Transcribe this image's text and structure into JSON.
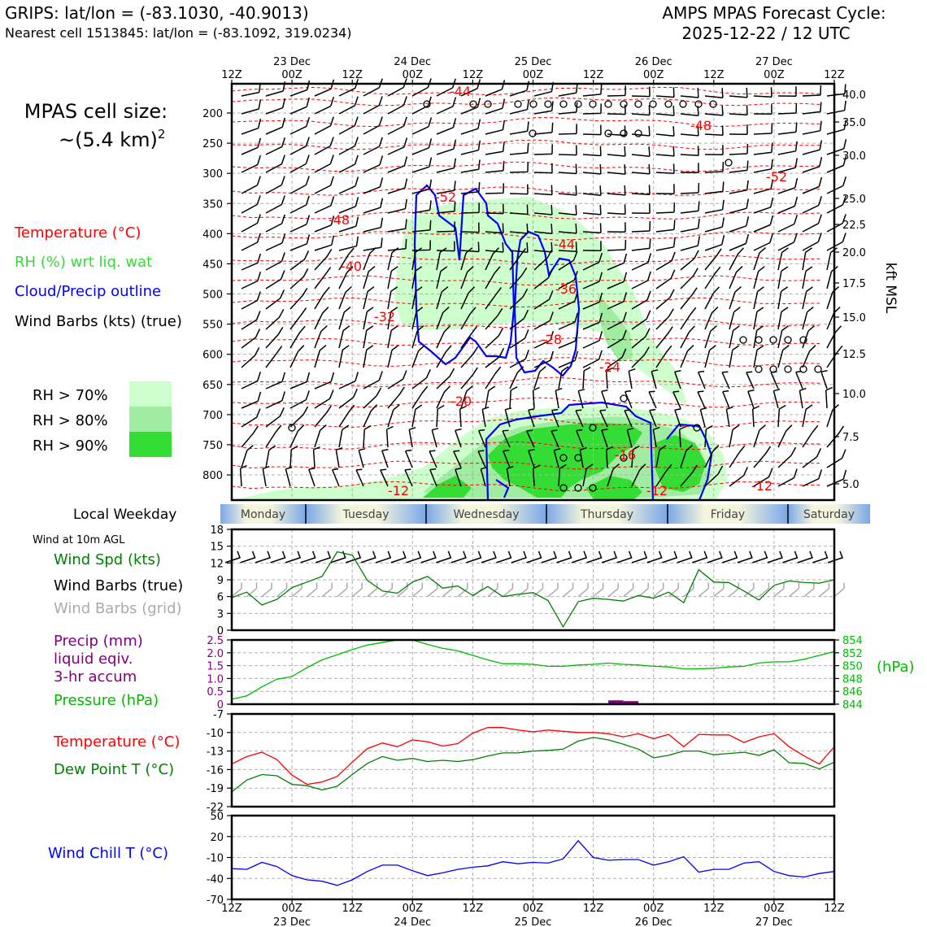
{
  "header": {
    "left_title": "GRIPS: lat/lon = (-83.1030, -40.9013)",
    "left_subtitle": "Nearest cell 1513845: lat/lon = (-83.1092, 319.0234)",
    "right_title_line1": "AMPS MPAS Forecast Cycle:",
    "right_title_line2": "2025-12-22 / 12 UTC"
  },
  "legend": {
    "cell_size_line1": "MPAS cell size:",
    "cell_size_line2": "~(5.4 km)",
    "cell_size_exp": "2",
    "temperature": "Temperature (°C)",
    "rh": "RH (%) wrt liq. wat",
    "cloud": "Cloud/Precip outline",
    "barbs": "Wind Barbs (kts) (true)",
    "rh70": "RH > 70%",
    "rh80": "RH > 80%",
    "rh90": "RH > 90%",
    "colors": {
      "temperature": "#ff0000",
      "rh_label": "#33dd33",
      "cloud": "#0000ff",
      "rh70": "#ccffcc",
      "rh80": "#a0eca0",
      "rh90": "#33dd33"
    }
  },
  "time_axis": {
    "top_ticks": [
      "12Z",
      "00Z",
      "12Z",
      "00Z",
      "12Z",
      "00Z",
      "12Z",
      "00Z",
      "12Z",
      "00Z",
      "12Z"
    ],
    "dates": [
      "23 Dec",
      "24 Dec",
      "25 Dec",
      "26 Dec",
      "27 Dec"
    ],
    "bottom_ticks": [
      "12Z",
      "00Z",
      "12Z",
      "00Z",
      "12Z",
      "00Z",
      "12Z",
      "00Z",
      "12Z",
      "00Z",
      "12Z"
    ]
  },
  "weekday": {
    "label": "Local Weekday",
    "days": [
      "Monday",
      "Tuesday",
      "Wednesday",
      "Thursday",
      "Friday",
      "Saturday"
    ]
  },
  "wind_panel": {
    "header": "Wind at 10m AGL",
    "spd_label": "Wind Spd (kts)",
    "barbs_true": "Wind Barbs (true)",
    "barbs_grid": "Wind Barbs (grid)"
  },
  "precip_panel": {
    "precip_line1": "Precip (mm)",
    "precip_line2": "liquid eqiv.",
    "precip_line3": "3-hr accum",
    "pressure_label": "Pressure (hPa)",
    "hpa_unit": "(hPa)"
  },
  "temp_panel": {
    "temp_label": "Temperature (°C)",
    "dew_label": "Dew Point T (°C)"
  },
  "windchill_panel": {
    "label": "Wind Chill T (°C)"
  },
  "chart_data": [
    {
      "type": "heatmap",
      "name": "cross-section",
      "x_range_hours": [
        0,
        120
      ],
      "left_axis_label": "",
      "left_ticks_hpa": [
        200,
        250,
        300,
        350,
        400,
        450,
        500,
        550,
        600,
        650,
        700,
        750,
        800
      ],
      "right_axis_label": "kft MSL",
      "right_ticks_kft": [
        "40.0",
        "35.0",
        "30.0",
        "25.0",
        "22.5",
        "20.0",
        "17.5",
        "15.0",
        "12.5",
        "10.0",
        "7.5",
        "5.0"
      ],
      "temperature_labels": [
        "-44",
        "-48",
        "-52",
        "-48",
        "-52",
        "-40",
        "-44",
        "-36",
        "-32",
        "-28",
        "-24",
        "-20",
        "-16",
        "-12",
        "-12",
        "-12"
      ]
    },
    {
      "type": "line",
      "name": "wind speed 10m",
      "ylim": [
        0,
        18
      ],
      "yticks": [
        "18",
        "15",
        "12",
        "9",
        "6",
        "3",
        "0"
      ],
      "x_hours": [
        0,
        3,
        6,
        9,
        12,
        15,
        18,
        21,
        24,
        27,
        30,
        33,
        36,
        39,
        42,
        45,
        48,
        51,
        54,
        57,
        60,
        63,
        66,
        69,
        72,
        75,
        78,
        81,
        84,
        87,
        90,
        93,
        96,
        99,
        102,
        105,
        108,
        111,
        114,
        117,
        120
      ],
      "values": [
        5.8,
        6.8,
        4.5,
        5.5,
        7.6,
        8.6,
        9.6,
        14.0,
        13.4,
        8.9,
        7.0,
        6.6,
        8.6,
        9.6,
        7.5,
        7.9,
        6.2,
        7.8,
        6.0,
        6.4,
        6.7,
        5.3,
        0.6,
        5.1,
        5.7,
        5.5,
        5.2,
        6.2,
        5.7,
        6.8,
        4.9,
        10.8,
        8.6,
        8.5,
        7.0,
        5.4,
        8.0,
        8.8,
        8.5,
        8.4,
        9.0
      ]
    },
    {
      "type": "bar",
      "name": "precip 3-hr accum",
      "ylim": [
        0,
        2.5
      ],
      "yticks": [
        "2.5",
        "2.0",
        "1.5",
        "1.0",
        "0.5",
        "0"
      ],
      "x_hours": [
        69,
        72,
        75,
        78,
        81
      ],
      "values": [
        0.01,
        0.02,
        0.15,
        0.12,
        0.0
      ]
    },
    {
      "type": "line",
      "name": "pressure",
      "ylim": [
        844,
        854
      ],
      "yticks": [
        "854",
        "852",
        "850",
        "848",
        "846",
        "844"
      ],
      "x_hours": [
        0,
        3,
        6,
        9,
        12,
        15,
        18,
        21,
        24,
        27,
        30,
        33,
        36,
        39,
        42,
        45,
        48,
        51,
        54,
        57,
        60,
        63,
        66,
        69,
        72,
        75,
        78,
        81,
        84,
        87,
        90,
        93,
        96,
        99,
        102,
        105,
        108,
        111,
        114,
        117,
        120
      ],
      "values": [
        844.8,
        845.3,
        846.7,
        847.9,
        848.3,
        849.7,
        850.9,
        851.7,
        852.5,
        853.2,
        853.6,
        854.0,
        854.0,
        853.3,
        852.7,
        852.3,
        851.6,
        850.9,
        850.3,
        850.3,
        850.2,
        849.9,
        849.9,
        850.1,
        850.2,
        850.4,
        850.2,
        850.1,
        849.9,
        849.8,
        849.5,
        849.5,
        849.6,
        849.8,
        849.9,
        850.4,
        850.6,
        850.6,
        851.0,
        851.6,
        852.2
      ]
    },
    {
      "type": "line",
      "name": "temperature and dew point",
      "ylim": [
        -22,
        -7
      ],
      "yticks": [
        "-7",
        "-10",
        "-13",
        "-16",
        "-19",
        "-22"
      ],
      "x_hours": [
        0,
        3,
        6,
        9,
        12,
        15,
        18,
        21,
        24,
        27,
        30,
        33,
        36,
        39,
        42,
        45,
        48,
        51,
        54,
        57,
        60,
        63,
        66,
        69,
        72,
        75,
        78,
        81,
        84,
        87,
        90,
        93,
        96,
        99,
        102,
        105,
        108,
        111,
        114,
        117,
        120
      ],
      "series": [
        {
          "values": [
            -15.1,
            -13.9,
            -13.2,
            -14.4,
            -16.9,
            -18.4,
            -18.0,
            -17.1,
            -14.8,
            -12.6,
            -11.7,
            -12.3,
            -11.2,
            -11.5,
            -12.2,
            -11.8,
            -10.1,
            -9.2,
            -9.2,
            -9.6,
            -9.9,
            -9.6,
            -9.8,
            -10.0,
            -10.0,
            -10.2,
            -10.7,
            -10.2,
            -11.0,
            -10.3,
            -12.3,
            -10.3,
            -10.4,
            -10.4,
            -11.6,
            -10.7,
            -10.2,
            -12.3,
            -13.8,
            -15.1,
            -12.3
          ]
        },
        {
          "values": [
            -19.6,
            -17.7,
            -16.8,
            -17.0,
            -18.4,
            -18.6,
            -19.3,
            -18.7,
            -16.8,
            -15.0,
            -13.9,
            -14.5,
            -14.2,
            -14.7,
            -14.5,
            -14.7,
            -14.4,
            -13.8,
            -13.3,
            -13.3,
            -13.0,
            -12.9,
            -12.7,
            -11.4,
            -10.8,
            -11.2,
            -11.9,
            -12.7,
            -14.1,
            -13.7,
            -13.0,
            -13.0,
            -13.6,
            -13.4,
            -13.2,
            -13.7,
            -12.8,
            -14.9,
            -15.0,
            -15.9,
            -14.8
          ]
        }
      ]
    },
    {
      "type": "line",
      "name": "wind chill",
      "ylim": [
        -70,
        50
      ],
      "yticks": [
        "50",
        "20",
        "-10",
        "-40",
        "-70"
      ],
      "x_hours": [
        0,
        3,
        6,
        9,
        12,
        15,
        18,
        21,
        24,
        27,
        30,
        33,
        36,
        39,
        42,
        45,
        48,
        51,
        54,
        57,
        60,
        63,
        66,
        69,
        72,
        75,
        78,
        81,
        84,
        87,
        90,
        93,
        96,
        99,
        102,
        105,
        108,
        111,
        114,
        117,
        120
      ],
      "values": [
        -26,
        -27,
        -17,
        -23,
        -36,
        -42,
        -44,
        -50,
        -42,
        -30,
        -21,
        -21,
        -29,
        -36,
        -32,
        -27,
        -24,
        -22,
        -16,
        -19,
        -17,
        -18,
        -12,
        14,
        -10,
        -14,
        -13,
        -13,
        -21,
        -16,
        -9,
        -31,
        -27,
        -27,
        -18,
        -16,
        -30,
        -36,
        -38,
        -33,
        -30
      ]
    }
  ]
}
